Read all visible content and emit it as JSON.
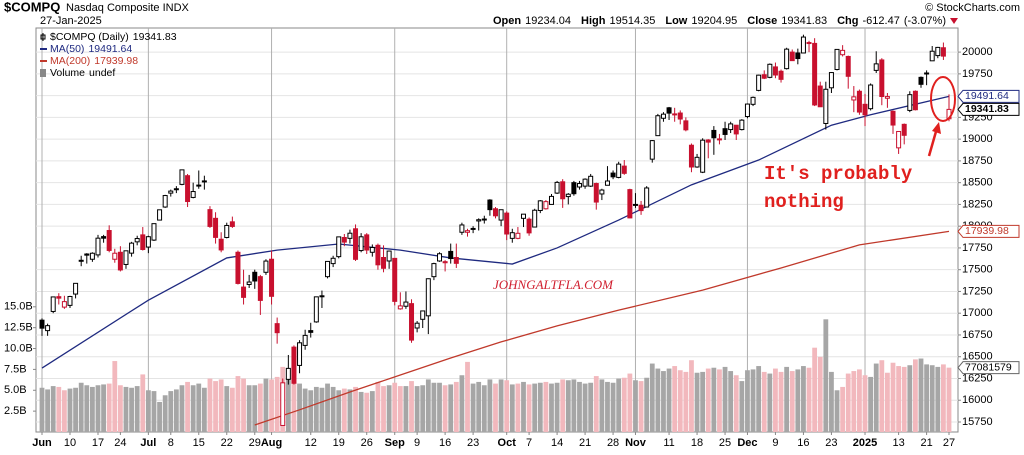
{
  "chart_data": {
    "type": "candlestick",
    "title": "$COMPQ",
    "subtitle": "Nasdaq Composite INDX",
    "date": "27-Jan-2025",
    "source": "© StockCharts.com",
    "stats": [
      {
        "label": "Open",
        "value": 19234.04
      },
      {
        "label": "High",
        "value": 19514.35
      },
      {
        "label": "Low",
        "value": 19204.95
      },
      {
        "label": "Close",
        "value": 19341.83
      },
      {
        "label": "Chg",
        "value": -612.47
      }
    ],
    "chg_pct": "(-3.07%)",
    "legend": [
      {
        "name": "$COMPQ (Daily)",
        "value": 19341.83
      },
      {
        "name": "MA(50)",
        "value": 19491.64
      },
      {
        "name": "MA(200)",
        "value": 17939.98
      },
      {
        "name": "Volume",
        "value": "undef"
      }
    ],
    "annotations": {
      "note": [
        "It's probably",
        "nothing"
      ],
      "watermark": "JOHNGALTFLA.COM"
    },
    "up_color": "#000000",
    "down_color": "#c8102e",
    "ylim": [
      15635,
      20277
    ],
    "yticks": [
      15750,
      16000,
      16250,
      16500,
      16750,
      17000,
      17250,
      17500,
      17750,
      18000,
      18250,
      18500,
      18750,
      19000,
      19250,
      19500,
      19750,
      20000
    ],
    "xlim": [
      0,
      162
    ],
    "xticks": [
      {
        "value": 0,
        "label": "Jun",
        "major": true
      },
      {
        "value": 5,
        "label": "10"
      },
      {
        "value": 10,
        "label": "17"
      },
      {
        "value": 14,
        "label": "24"
      },
      {
        "value": 19,
        "label": "Jul",
        "major": true
      },
      {
        "value": 23,
        "label": "8"
      },
      {
        "value": 28,
        "label": "15"
      },
      {
        "value": 33,
        "label": "22"
      },
      {
        "value": 38,
        "label": "29"
      },
      {
        "value": 41,
        "label": "Aug",
        "major": true
      },
      {
        "value": 48,
        "label": "12"
      },
      {
        "value": 53,
        "label": "19"
      },
      {
        "value": 58,
        "label": "26"
      },
      {
        "value": 63,
        "label": "Sep",
        "major": true
      },
      {
        "value": 67,
        "label": "9"
      },
      {
        "value": 72,
        "label": "16"
      },
      {
        "value": 77,
        "label": "23"
      },
      {
        "value": 83,
        "label": "Oct",
        "major": true
      },
      {
        "value": 87,
        "label": "7"
      },
      {
        "value": 92,
        "label": "14"
      },
      {
        "value": 97,
        "label": "21"
      },
      {
        "value": 102,
        "label": "28"
      },
      {
        "value": 106,
        "label": "Nov",
        "major": true
      },
      {
        "value": 112,
        "label": "11"
      },
      {
        "value": 117,
        "label": "18"
      },
      {
        "value": 122,
        "label": "25"
      },
      {
        "value": 126,
        "label": "Dec",
        "major": true
      },
      {
        "value": 131,
        "label": "9"
      },
      {
        "value": 136,
        "label": "16"
      },
      {
        "value": 141,
        "label": "23"
      },
      {
        "value": 147,
        "label": "2025",
        "major": true
      },
      {
        "value": 153,
        "label": "13"
      },
      {
        "value": 158,
        "label": "21"
      },
      {
        "value": 162,
        "label": "27"
      }
    ],
    "open": [
      16920,
      16800,
      17020,
      17190,
      17070,
      17090,
      17220,
      17600,
      17680,
      17620,
      17670,
      17880,
      17950,
      17620,
      17700,
      17560,
      17690,
      17820,
      17900,
      17760,
      17840,
      18070,
      18220,
      18380,
      18430,
      18480,
      18580,
      18330,
      18470,
      18520,
      18190,
      18090,
      17850,
      17870,
      18050,
      17700,
      17300,
      17330,
      17470,
      17420,
      17470,
      17620,
      16880,
      15710,
      16240,
      16610,
      16400,
      16630,
      16800,
      16900,
      17200,
      17420,
      17570,
      17650,
      17870,
      17860,
      17970,
      17720,
      17900,
      17700,
      17780,
      17640,
      17600,
      17630,
      17050,
      17080,
      17110,
      16830,
      16930,
      16970,
      17420,
      17600,
      17580,
      17710,
      17640,
      17930,
      17930,
      17970,
      18060,
      18080,
      18300,
      18200,
      18070,
      18150,
      17860,
      17860,
      18090,
      18080,
      17990,
      18180,
      18200,
      18250,
      18380,
      18510,
      18340,
      18500,
      18450,
      18460,
      18460,
      18490,
      18370,
      18470,
      18610,
      18560,
      18690,
      18420,
      18250,
      18240,
      18220,
      18770,
      19040,
      19240,
      19360,
      19290,
      19300,
      19210,
      18930,
      18680,
      18620,
      18990,
      19100,
      19000,
      19120,
      19110,
      19160,
      19110,
      19260,
      19400,
      19560,
      19740,
      19710,
      19830,
      19780,
      19810,
      20000,
      19990,
      19990,
      20110,
      20100,
      19610,
      19180,
      19590,
      19800,
      19970,
      19950,
      19450,
      19550,
      19400,
      19350,
      19790,
      19910,
      19470,
      19320,
      18900,
      19170,
      19330,
      19550,
      19710,
      19760,
      19900,
      19960,
      20050,
      19234.04
    ],
    "high": [
      16940,
      16880,
      17190,
      17230,
      17200,
      17200,
      17345,
      17660,
      17690,
      17700,
      17900,
      17900,
      18010,
      17740,
      17770,
      17720,
      17820,
      17890,
      17990,
      17890,
      18030,
      18190,
      18360,
      18420,
      18460,
      18650,
      18600,
      18500,
      18640,
      18580,
      18230,
      18160,
      17930,
      18040,
      18110,
      17720,
      17500,
      17440,
      17500,
      17440,
      17620,
      17720,
      16950,
      16250,
      16520,
      16630,
      16690,
      16810,
      16890,
      17190,
      17260,
      17600,
      17660,
      17880,
      17910,
      17960,
      18020,
      17920,
      17920,
      17790,
      17800,
      17780,
      17720,
      17630,
      17240,
      17250,
      17160,
      16910,
      17030,
      17400,
      17580,
      17700,
      17610,
      17800,
      17800,
      18040,
      17970,
      18000,
      18090,
      18120,
      18310,
      18220,
      18190,
      18170,
      17970,
      17990,
      18140,
      18100,
      18200,
      18300,
      18300,
      18370,
      18520,
      18540,
      18380,
      18520,
      18520,
      18550,
      18600,
      18500,
      18430,
      18690,
      18640,
      18740,
      18760,
      18430,
      18380,
      18290,
      18460,
      18990,
      19290,
      19310,
      19370,
      19360,
      19330,
      19250,
      18950,
      18830,
      19010,
      19000,
      19150,
      19060,
      19200,
      19200,
      19160,
      19230,
      19410,
      19490,
      19740,
      19790,
      19870,
      19880,
      19800,
      20050,
      20030,
      20040,
      20200,
      20130,
      20160,
      19660,
      19660,
      19770,
      20030,
      20080,
      19960,
      19610,
      19570,
      19520,
      19640,
      20010,
      19930,
      19530,
      19330,
      19090,
      19180,
      19550,
      19560,
      19720,
      19790,
      20070,
      20060,
      20110,
      19514.35
    ],
    "low": [
      16740,
      16740,
      17000,
      17100,
      17050,
      17060,
      17170,
      17540,
      17570,
      17590,
      17640,
      17810,
      17700,
      17580,
      17480,
      17510,
      17650,
      17780,
      17720,
      17690,
      17830,
      18070,
      18210,
      18340,
      18380,
      18470,
      18220,
      18320,
      18430,
      18420,
      17980,
      17800,
      17700,
      17860,
      17980,
      17330,
      17100,
      17290,
      17280,
      16980,
      17440,
      17100,
      16650,
      15710,
      16180,
      16180,
      16310,
      16580,
      16720,
      16890,
      17060,
      17400,
      17530,
      17630,
      17770,
      17800,
      17600,
      17700,
      17680,
      17650,
      17500,
      17470,
      17510,
      17090,
      17040,
      17050,
      16660,
      16780,
      16830,
      16760,
      17380,
      17590,
      17480,
      17570,
      17520,
      17900,
      17880,
      17920,
      17950,
      18030,
      18120,
      18090,
      18000,
      17840,
      17810,
      17850,
      17990,
      17890,
      17990,
      18150,
      18190,
      18250,
      18370,
      18210,
      18250,
      18350,
      18420,
      18430,
      18450,
      18190,
      18300,
      18470,
      18540,
      18550,
      18590,
      18090,
      18210,
      18130,
      18220,
      18730,
      19040,
      19200,
      19220,
      19200,
      19170,
      19090,
      18620,
      18670,
      18610,
      18780,
      18820,
      18940,
      18990,
      19070,
      18990,
      19100,
      19240,
      19380,
      19550,
      19690,
      19700,
      19700,
      19650,
      19800,
      19900,
      19860,
      19990,
      20000,
      19380,
      19370,
      19110,
      19530,
      19790,
      19950,
      19580,
      19310,
      19280,
      19150,
      19330,
      19760,
      19390,
      19360,
      19060,
      18830,
      18940,
      19310,
      19330,
      19590,
      19620,
      19900,
      19930,
      19910,
      19204.95
    ],
    "close": [
      16828,
      16857,
      17187,
      17173,
      17133,
      17192,
      17343,
      17608,
      17667,
      17689,
      17862,
      17862,
      17721,
      17689,
      17497,
      17717,
      17805,
      17858,
      17732,
      17879,
      18029,
      18188,
      18352,
      18403,
      18430,
      18647,
      18283,
      18398,
      18472,
      18509,
      17997,
      17871,
      17727,
      18008,
      17997,
      17342,
      17182,
      17358,
      17370,
      17147,
      17599,
      17194,
      16776,
      16200,
      16366,
      16195,
      16660,
      16745,
      16780,
      17188,
      17192,
      17595,
      17631,
      17877,
      17817,
      17919,
      17619,
      17878,
      17726,
      17755,
      17556,
      17516,
      17714,
      17136,
      17084,
      17128,
      16691,
      16885,
      17026,
      17396,
      17570,
      17683,
      17592,
      17628,
      17573,
      18014,
      17948,
      17974,
      18074,
      18082,
      18190,
      18119,
      18189,
      17910,
      17925,
      17918,
      18138,
      17923,
      18183,
      18291,
      18282,
      18342,
      18503,
      18315,
      18367,
      18373,
      18490,
      18540,
      18573,
      18277,
      18415,
      18519,
      18567,
      18713,
      18607,
      18095,
      18239,
      18179,
      18439,
      18983,
      19269,
      19287,
      19299,
      19282,
      19231,
      19107,
      18680,
      18791,
      18988,
      18966,
      19016,
      19003,
      19054,
      19175,
      19060,
      19218,
      19403,
      19480,
      19735,
      19700,
      19860,
      19737,
      19687,
      20034,
      19902,
      19926,
      20173,
      20109,
      19393,
      19372,
      19573,
      19765,
      20031,
      20020,
      19722,
      19486,
      19311,
      19280,
      19622,
      19865,
      19490,
      19489,
      19162,
      19088,
      19044,
      19511,
      19338,
      19630,
      19757,
      20010,
      20054,
      19954,
      19341.83
    ],
    "volume": {
      "up_color": "#a6a6a6",
      "down_color": "#f2b8bd",
      "ylim": [
        0,
        48.4
      ],
      "yticks": [
        {
          "value": 2.5,
          "label": "2.5B"
        },
        {
          "value": 5,
          "label": "5.0B"
        },
        {
          "value": 7.5,
          "label": "7.5B"
        },
        {
          "value": 10,
          "label": "10.0B"
        },
        {
          "value": 12.5,
          "label": "12.5B"
        },
        {
          "value": 15,
          "label": "15.0B"
        }
      ],
      "last_label": "77081579",
      "values": [
        5.3,
        5.1,
        5.5,
        5.4,
        5.0,
        5.2,
        5.3,
        5.9,
        5.6,
        5.4,
        5.6,
        5.7,
        5.8,
        8.5,
        5.6,
        5.4,
        5.3,
        5.5,
        6.9,
        5.0,
        4.9,
        3.6,
        4.4,
        4.9,
        5.1,
        5.6,
        6.0,
        5.6,
        5.8,
        5.3,
        6.4,
        6.1,
        6.3,
        5.5,
        5.3,
        6.7,
        6.4,
        5.6,
        5.6,
        5.8,
        6.4,
        6.3,
        6.6,
        7.8,
        6.4,
        6.0,
        5.8,
        5.2,
        5.0,
        5.4,
        5.3,
        5.8,
        5.4,
        5.0,
        5.2,
        5.1,
        5.4,
        4.8,
        4.7,
        4.9,
        6.0,
        5.5,
        5.6,
        5.9,
        5.5,
        5.5,
        6.1,
        5.5,
        5.6,
        6.3,
        5.9,
        5.9,
        5.6,
        5.7,
        6.0,
        6.8,
        8.4,
        5.8,
        6.0,
        5.6,
        6.3,
        5.8,
        6.3,
        6.2,
        5.7,
        5.8,
        6.0,
        5.7,
        5.8,
        5.9,
        6.0,
        5.8,
        5.9,
        6.3,
        6.2,
        6.3,
        6.0,
        5.8,
        5.9,
        6.7,
        6.3,
        6.0,
        5.9,
        6.4,
        6.5,
        7.0,
        6.2,
        6.1,
        6.5,
        8.2,
        7.6,
        7.3,
        7.6,
        7.9,
        7.4,
        7.2,
        8.6,
        7.1,
        7.2,
        7.6,
        7.7,
        7.5,
        7.8,
        7.3,
        6.8,
        6.1,
        7.4,
        7.5,
        7.9,
        7.2,
        7.0,
        7.6,
        7.2,
        7.8,
        7.3,
        7.5,
        7.9,
        7.7,
        10.1,
        9.0,
        13.5,
        7.2,
        5.0,
        5.4,
        7.0,
        7.3,
        7.5,
        6.8,
        6.6,
        8.2,
        8.6,
        7.1,
        8.3,
        7.9,
        7.8,
        8.0,
        8.7,
        8.8,
        8.1,
        8.0,
        7.8,
        8.1,
        7.71
      ]
    },
    "ma": [
      {
        "name": "MA(50)",
        "color": "#1f2a80",
        "x": [
          0,
          19,
          33,
          42,
          53,
          64,
          73,
          84,
          92,
          103,
          116,
          128,
          141,
          148,
          162
        ],
        "values": [
          16370,
          17150,
          17635,
          17725,
          17795,
          17725,
          17635,
          17565,
          17750,
          18070,
          18475,
          18760,
          19160,
          19280,
          19491.64
        ]
      },
      {
        "name": "MA(200)",
        "color": "#c0392b",
        "x": [
          38,
          46,
          55,
          64,
          73,
          82,
          92,
          103,
          118,
          132,
          146,
          162
        ],
        "values": [
          15715,
          15890,
          16095,
          16290,
          16485,
          16670,
          16855,
          17035,
          17265,
          17520,
          17785,
          17939.98
        ]
      }
    ]
  }
}
